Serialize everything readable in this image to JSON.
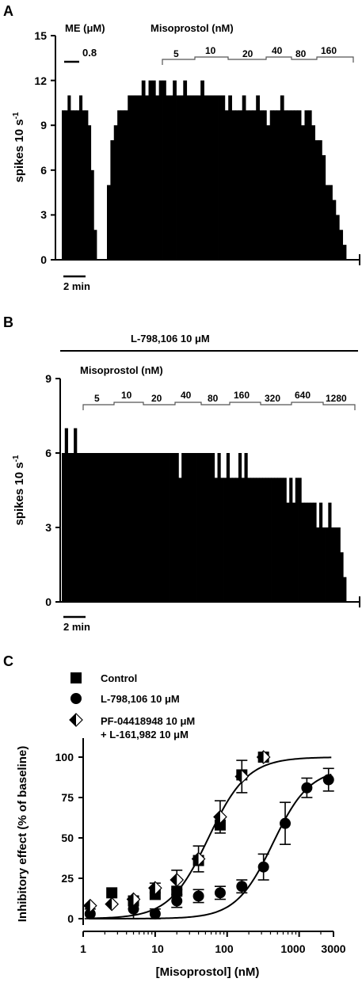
{
  "panels": {
    "A": {
      "letter": "A",
      "ylabel": "spikes 10 s",
      "ylabel_sup": "-1",
      "yticks": [
        "0",
        "3",
        "6",
        "9",
        "12",
        "15"
      ],
      "scalebar_label": "2 min",
      "me_label": "ME (μM)",
      "me_conc": "0.8",
      "drug_label": "Misoprostol (nM)",
      "concs": [
        "5",
        "10",
        "20",
        "40",
        "80",
        "160"
      ]
    },
    "B": {
      "letter": "B",
      "antagonist_label": "L-798,106 10 μM",
      "ylabel": "spikes 10 s",
      "ylabel_sup": "-1",
      "yticks": [
        "0",
        "3",
        "6",
        "9"
      ],
      "scalebar_label": "2 min",
      "drug_label": "Misoprostol (nM)",
      "concs": [
        "5",
        "10",
        "20",
        "40",
        "80",
        "160",
        "320",
        "640",
        "1280"
      ]
    },
    "C": {
      "letter": "C",
      "legend": {
        "control": "Control",
        "l798": "L-798,106 10 μM",
        "pf_line1": "PF-04418948 10 μM",
        "pf_line2": "+ L-161,982 10 μM"
      }
    }
  },
  "chart_data": [
    {
      "type": "bar",
      "panel": "A",
      "ylabel": "spikes 10 s-1",
      "ylim": [
        0,
        15
      ],
      "yticks": [
        0,
        3,
        6,
        9,
        12,
        15
      ],
      "scale_bar": "2 min",
      "treatments": {
        "ME (μM)": [
          "0.8"
        ],
        "Misoprostol (nM)": [
          "5",
          "10",
          "20",
          "40",
          "80",
          "160"
        ]
      },
      "segments": [
        {
          "levels": [
            10,
            10,
            11,
            10,
            10,
            10,
            11,
            10,
            10,
            9,
            6,
            2
          ]
        },
        {
          "levels": [
            5,
            8,
            9,
            10,
            10,
            10,
            11,
            11,
            11,
            11,
            12,
            11,
            12,
            12,
            11,
            12,
            12,
            11,
            11,
            12,
            11,
            11,
            12,
            11,
            11,
            11,
            11,
            12,
            11,
            11,
            11,
            11,
            11,
            11,
            10,
            11,
            10,
            10,
            10,
            11,
            10,
            10,
            10,
            11,
            10,
            10,
            9,
            10,
            10,
            10,
            11,
            10,
            10,
            10,
            10,
            10,
            9,
            10,
            10,
            9,
            8,
            8,
            7,
            5,
            5,
            4,
            3,
            2,
            1
          ]
        }
      ]
    },
    {
      "type": "bar",
      "panel": "B",
      "ylabel": "spikes 10 s-1",
      "ylim": [
        0,
        9
      ],
      "yticks": [
        0,
        3,
        6,
        9
      ],
      "scale_bar": "2 min",
      "treatments": {
        "L-798,106 10 μM": [],
        "Misoprostol (nM)": [
          "5",
          "10",
          "20",
          "40",
          "80",
          "160",
          "320",
          "640",
          "1280"
        ]
      },
      "segments": [
        {
          "levels": [
            6,
            7,
            6,
            6,
            7,
            6,
            6,
            6,
            6,
            6,
            6,
            6,
            6,
            6,
            6,
            6,
            6,
            6,
            6,
            6,
            6,
            6,
            6,
            6,
            6,
            6,
            6,
            6,
            6,
            6,
            6,
            6,
            6,
            6,
            6,
            6,
            6,
            6,
            6,
            5,
            6,
            6,
            6,
            6,
            6,
            6,
            6,
            6,
            6,
            6,
            6,
            5,
            6,
            5,
            5,
            6,
            5,
            5,
            5,
            6,
            5,
            6,
            5,
            5,
            5,
            5,
            5,
            5,
            5,
            5,
            5,
            5,
            5,
            5,
            5,
            4,
            5,
            4,
            5,
            5,
            4,
            4,
            4,
            4,
            4,
            3,
            4,
            3,
            3,
            4,
            3,
            3,
            3,
            2,
            1
          ]
        }
      ]
    },
    {
      "type": "scatter",
      "panel": "C",
      "xlabel": "[Misoprostol] (nM)",
      "ylabel": "Inhibitory effect (% of baseline)",
      "xscale": "log",
      "xlim": [
        1,
        3000
      ],
      "ylim": [
        0,
        100
      ],
      "xticks": [
        1,
        10,
        100,
        1000,
        3000
      ],
      "yticks": [
        0,
        25,
        50,
        75,
        100
      ],
      "series": [
        {
          "name": "Control",
          "marker": "square",
          "x": [
            2.5,
            5,
            10,
            20,
            40,
            80,
            160,
            320
          ],
          "y": [
            16,
            11,
            15,
            17,
            36,
            58,
            89,
            100
          ]
        },
        {
          "name": "L-798,106 10 μM",
          "marker": "circle",
          "x": [
            1.25,
            5,
            10,
            20,
            40,
            80,
            160,
            320,
            640,
            1280,
            2560
          ],
          "y": [
            3,
            6,
            3,
            11,
            14,
            16,
            20,
            32,
            59,
            81,
            86
          ],
          "err": [
            3,
            6,
            3,
            4,
            4,
            4,
            4,
            8,
            13,
            6,
            7
          ]
        },
        {
          "name": "PF-04418948 10 μM + L-161,982 10 μM",
          "marker": "diamond",
          "x": [
            1.25,
            2.5,
            5,
            10,
            20,
            40,
            80,
            160,
            320
          ],
          "y": [
            8,
            9,
            12,
            19,
            24,
            37,
            63,
            88,
            100
          ],
          "err": [
            0,
            0,
            0,
            3,
            6,
            8,
            10,
            10,
            0
          ]
        }
      ],
      "fits": [
        {
          "series": "Control",
          "ec50": 55,
          "hill": 1.6,
          "top": 100,
          "bottom": 0
        },
        {
          "series": "L-798,106 10 μM",
          "ec50": 430,
          "hill": 1.7,
          "top": 93,
          "bottom": 0
        }
      ]
    }
  ]
}
